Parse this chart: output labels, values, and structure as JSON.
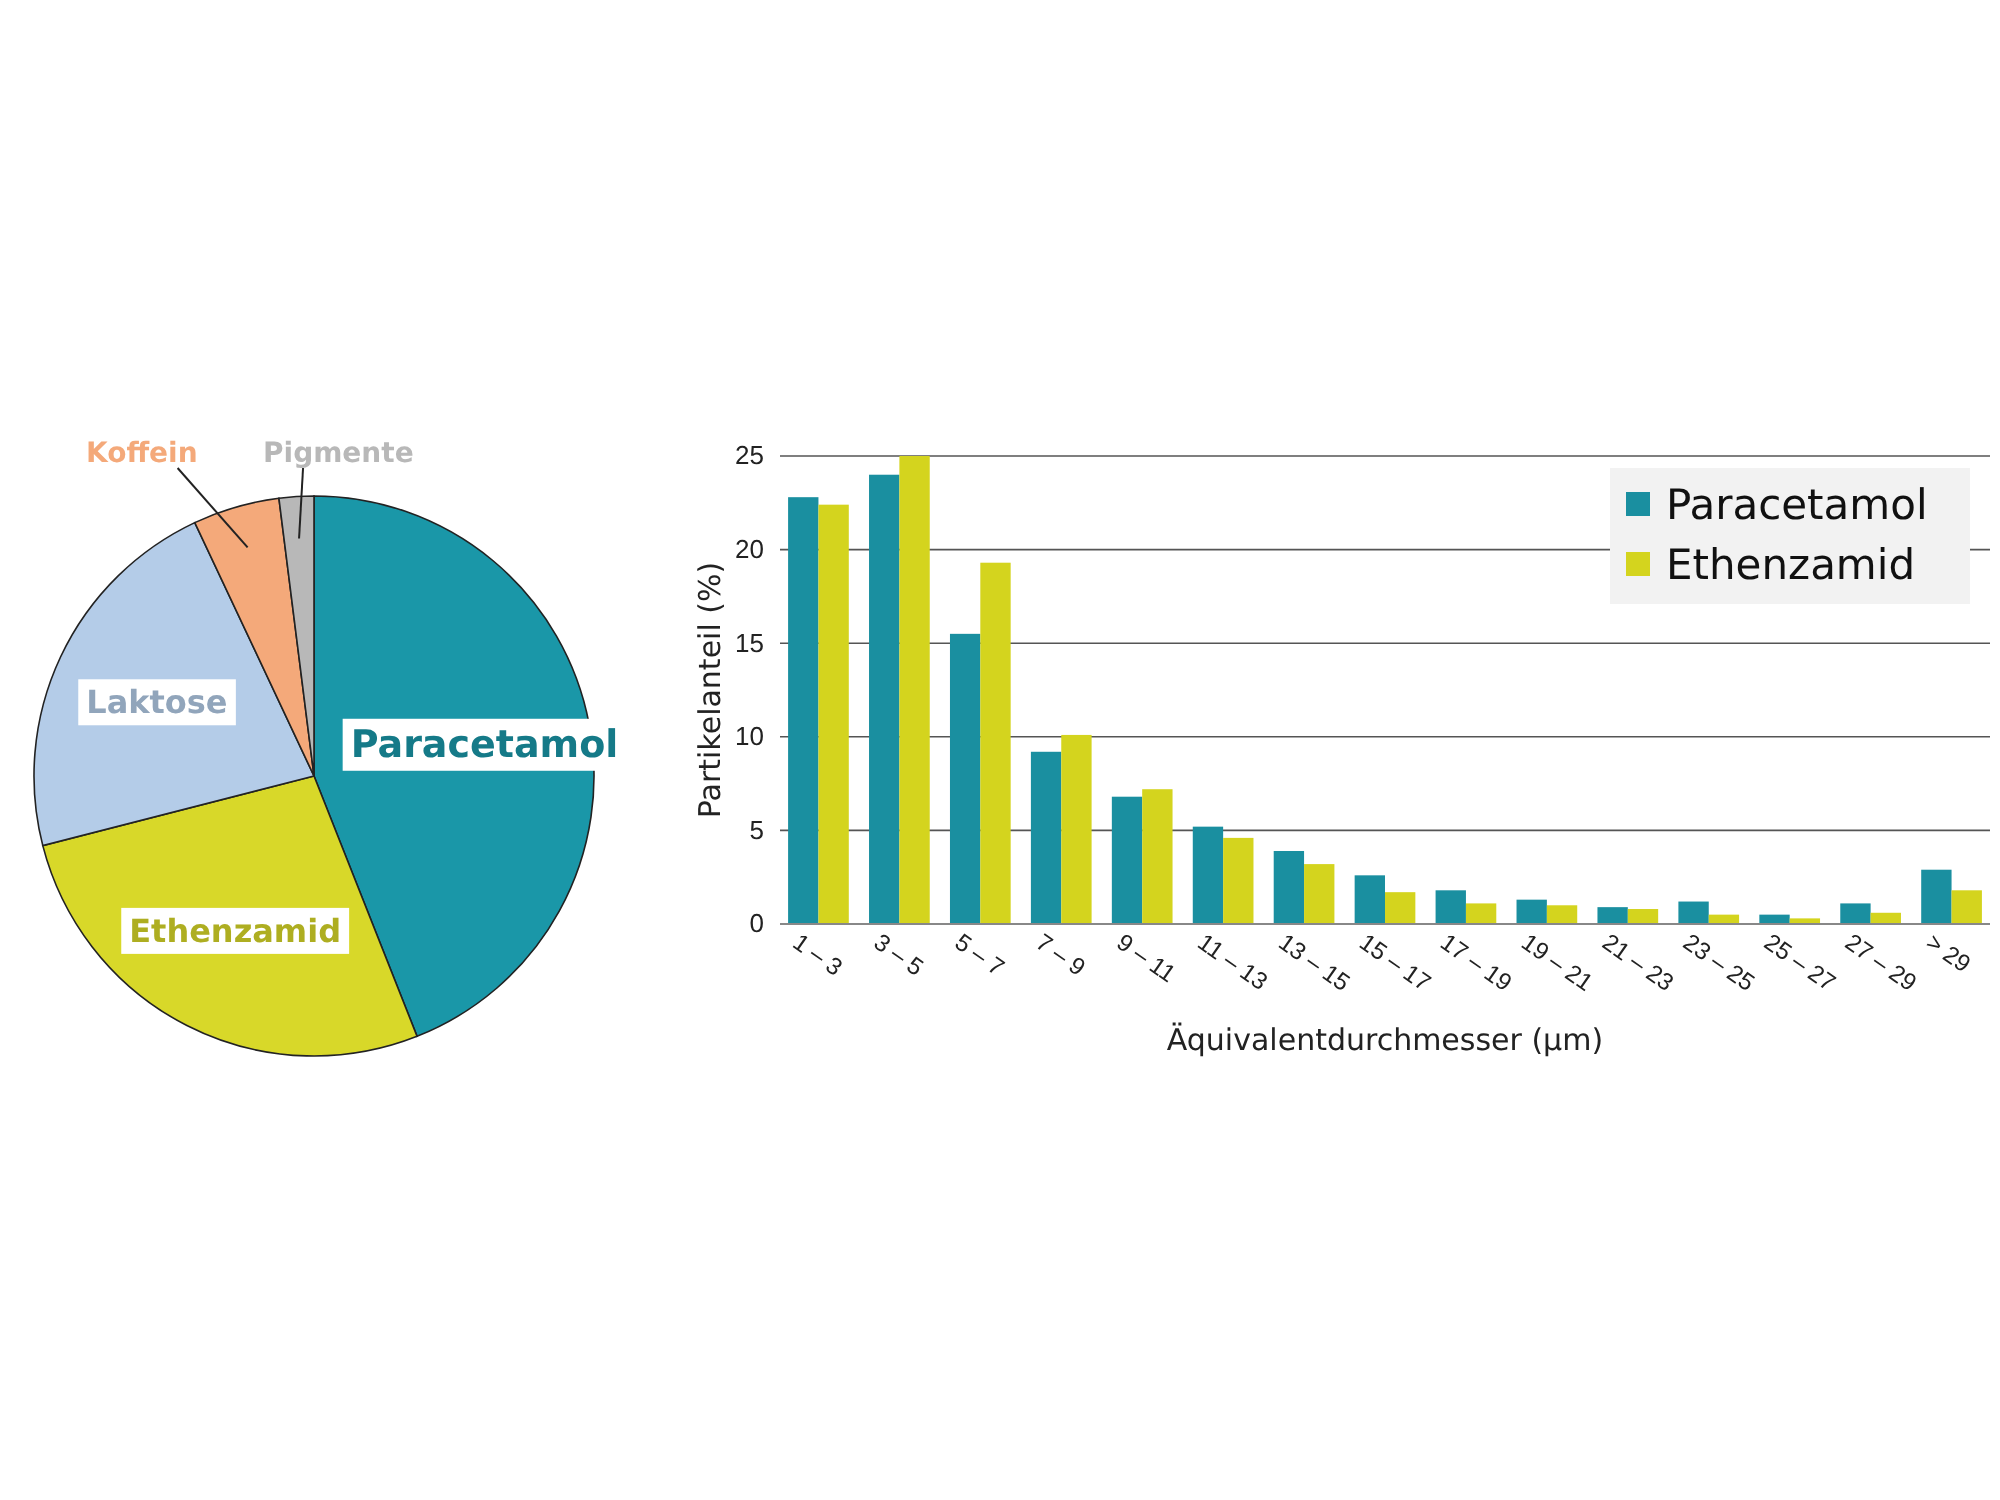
{
  "chart_data": [
    {
      "type": "pie",
      "categories": [
        "Paracetamol",
        "Ethenzamid",
        "Laktose",
        "Koffein",
        "Pigmente"
      ],
      "values": [
        44,
        27,
        22,
        5,
        2
      ],
      "colors": [
        "#1a97a8",
        "#d8d829",
        "#b4cce8",
        "#f4a97a",
        "#b8b8b8"
      ]
    },
    {
      "type": "bar",
      "categories": [
        "1 – 3",
        "3 – 5",
        "5 – 7",
        "7 – 9",
        "9 – 11",
        "11 – 13",
        "13 – 15",
        "15 – 17",
        "17 – 19",
        "19 – 21",
        "21 – 23",
        "23 – 25",
        "25 – 27",
        "27 – 29",
        "> 29"
      ],
      "series": [
        {
          "name": "Paracetamol",
          "color": "#1a8fa0",
          "values": [
            22.8,
            24,
            15.5,
            9.2,
            6.8,
            5.2,
            3.9,
            2.6,
            1.8,
            1.3,
            0.9,
            1.2,
            0.5,
            1.1,
            2.9
          ]
        },
        {
          "name": "Ethenzamid",
          "color": "#d4d41e",
          "values": [
            22.4,
            25,
            19.3,
            10.1,
            7.2,
            4.6,
            3.2,
            1.7,
            1.1,
            1.0,
            0.8,
            0.5,
            0.3,
            0.6,
            1.8
          ]
        }
      ],
      "ylim": [
        0,
        25
      ],
      "yticks": [
        0,
        5,
        10,
        15,
        20,
        25
      ],
      "grid": "y",
      "legend": "top right",
      "xlabel": "Äquivalentdurchmesser (µm)",
      "ylabel": "Partikelanteil (%)"
    }
  ]
}
